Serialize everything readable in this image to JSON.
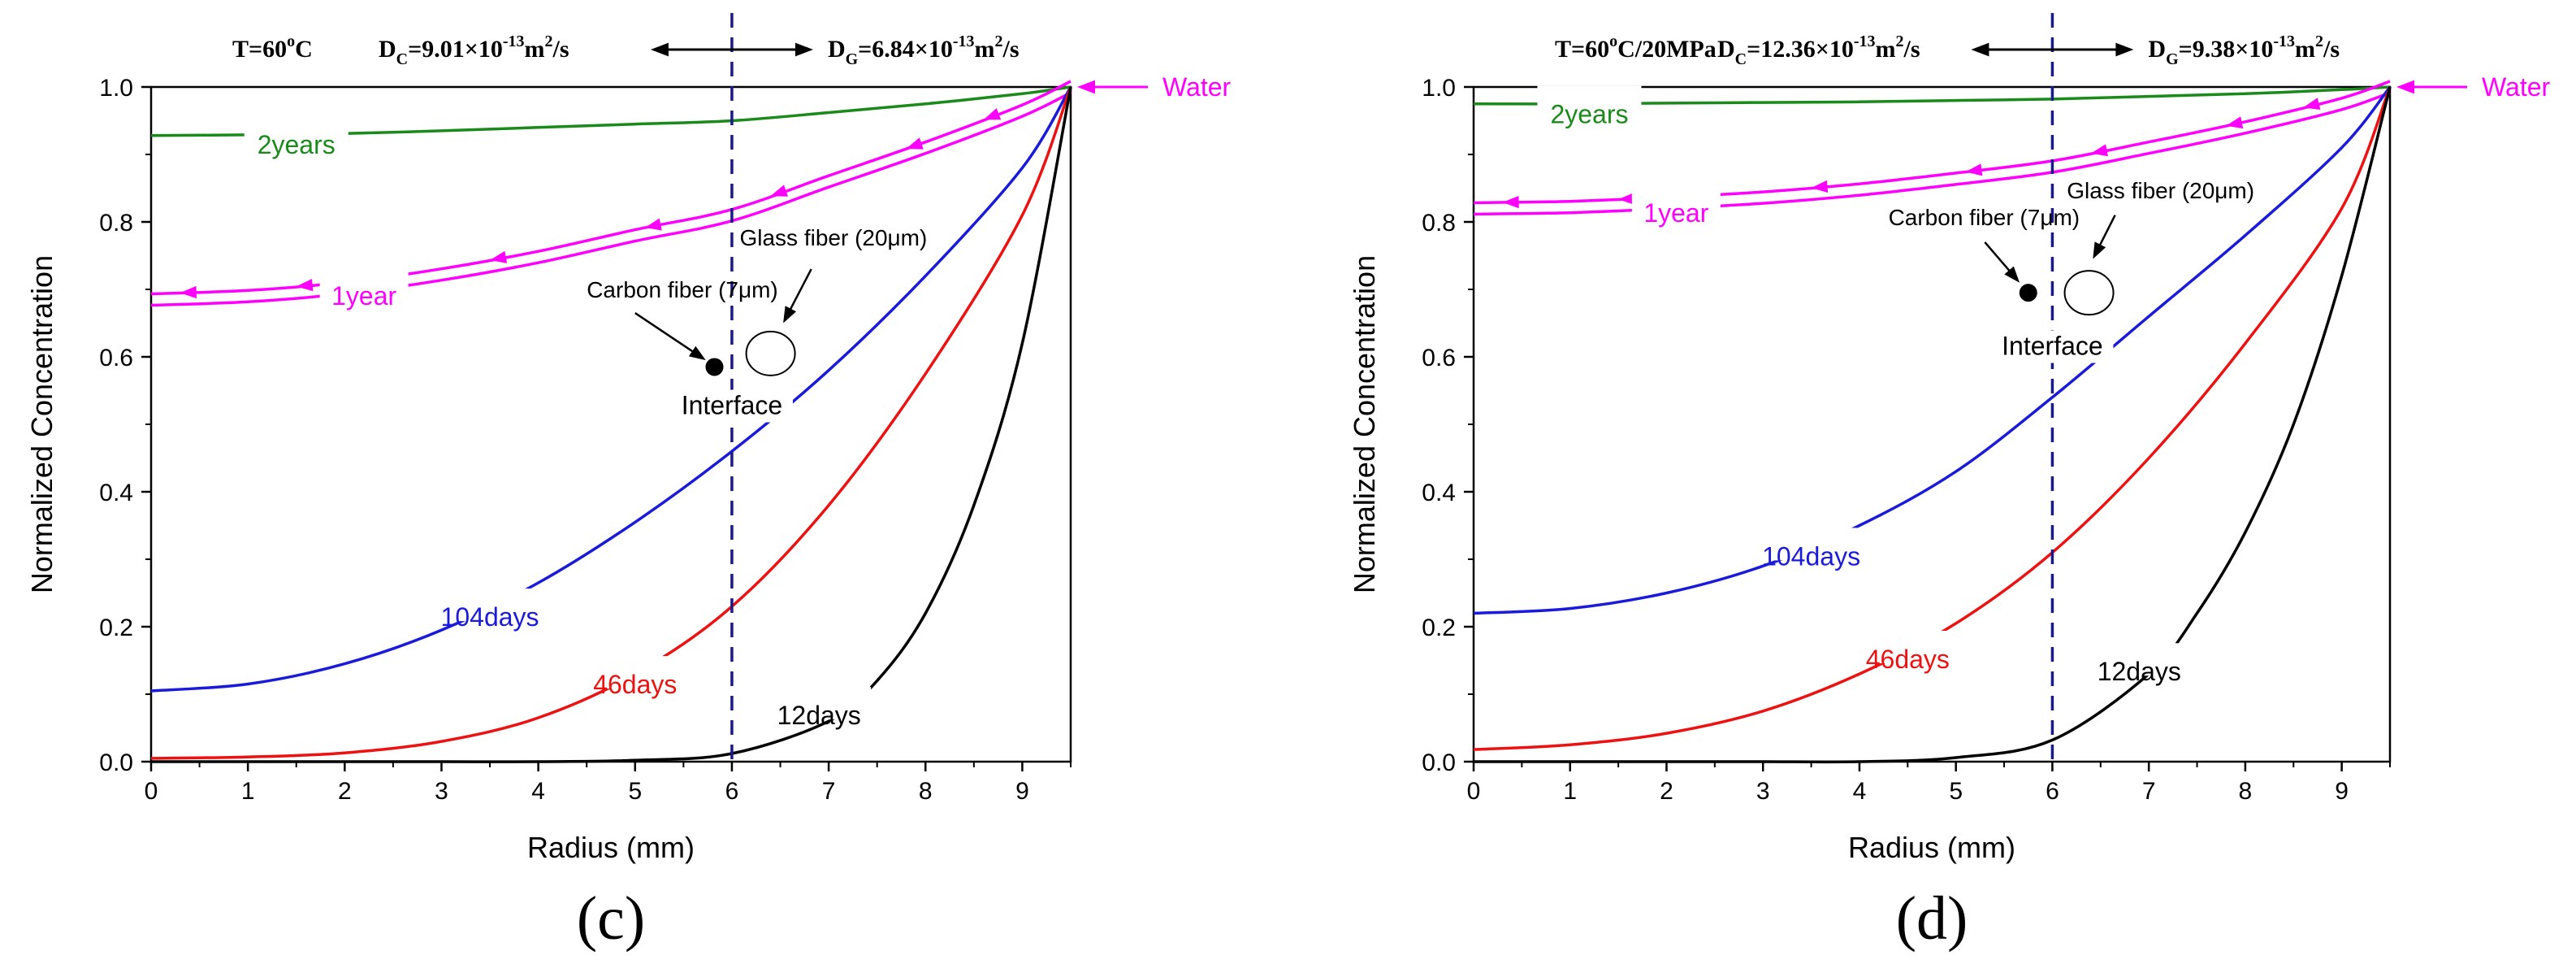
{
  "colors": {
    "twoyears": "#1a8a1a",
    "oneyear": "#ff00ff",
    "d104": "#1a1adc",
    "d46": "#ee1111",
    "d12": "#000000",
    "interface": "#1a1a8c",
    "water": "#ff00ff"
  },
  "chart_data": [
    {
      "type": "line",
      "panel_label": "(c)",
      "header": {
        "temp_main": "T=60",
        "temp_sup": "o",
        "temp_unit": "C",
        "dc_main": "D",
        "dc_sub": "C",
        "dc_val": "=9.01×10",
        "dc_exp": "-13",
        "dc_unit": "m",
        "dc_unit_sup": "2",
        "dc_unit_end": "/s",
        "dg_main": "D",
        "dg_sub": "G",
        "dg_val": "=6.84×10",
        "dg_exp": "-13",
        "dg_unit": "m",
        "dg_unit_sup": "2",
        "dg_unit_end": "/s"
      },
      "xlabel": "Radius (mm)",
      "ylabel": "Normalized Concentration",
      "xlim": [
        0,
        9.5
      ],
      "ylim": [
        0,
        1.0
      ],
      "xticks": [
        "0",
        "1",
        "2",
        "3",
        "4",
        "5",
        "6",
        "7",
        "8",
        "9"
      ],
      "yticks": [
        "0.0",
        "0.2",
        "0.4",
        "0.6",
        "0.8",
        "1.0"
      ],
      "interface_x": 6,
      "labels": {
        "water": "Water",
        "interface": "Interface",
        "carbon": "Carbon fiber (7μm)",
        "glass": "Glass fiber (20μm)"
      },
      "series": [
        {
          "name": "2years",
          "key": "twoyears",
          "x": [
            0,
            1,
            2,
            3,
            4,
            5,
            6,
            7,
            8,
            9,
            9.5
          ],
          "y": [
            0.928,
            0.929,
            0.931,
            0.935,
            0.94,
            0.945,
            0.95,
            0.962,
            0.975,
            0.99,
            1.0
          ],
          "label_x": 1.5
        },
        {
          "name": "1year",
          "key": "oneyear",
          "x": [
            0,
            1,
            2,
            3,
            4,
            5,
            6,
            7,
            8,
            9,
            9.5
          ],
          "y": [
            0.685,
            0.69,
            0.702,
            0.722,
            0.748,
            0.78,
            0.81,
            0.86,
            0.91,
            0.965,
            1.0
          ],
          "label_x": 2.2
        },
        {
          "name": "104days",
          "key": "d104",
          "x": [
            0,
            1,
            2,
            3,
            4,
            5,
            6,
            7,
            8,
            9,
            9.5
          ],
          "y": [
            0.105,
            0.115,
            0.145,
            0.195,
            0.265,
            0.355,
            0.46,
            0.58,
            0.72,
            0.88,
            1.0
          ],
          "label_x": 3.5
        },
        {
          "name": "46days",
          "key": "d46",
          "x": [
            0,
            1,
            2,
            3,
            4,
            5,
            6,
            7,
            8,
            9,
            9.5
          ],
          "y": [
            0.005,
            0.007,
            0.013,
            0.03,
            0.065,
            0.13,
            0.23,
            0.38,
            0.575,
            0.81,
            1.0
          ],
          "label_x": 5.0
        },
        {
          "name": "12days",
          "key": "d12",
          "x": [
            0,
            1,
            2,
            3,
            4,
            5,
            6,
            7,
            7.5,
            8,
            8.5,
            9,
            9.5
          ],
          "y": [
            0,
            0,
            0,
            0,
            0,
            0.002,
            0.012,
            0.06,
            0.12,
            0.22,
            0.38,
            0.62,
            1.0
          ],
          "label_x": 6.9
        }
      ]
    },
    {
      "type": "line",
      "panel_label": "(d)",
      "header": {
        "temp_main": "T=60",
        "temp_sup": "o",
        "temp_unit": "C/20MPa",
        "dc_main": "D",
        "dc_sub": "C",
        "dc_val": "=12.36×10",
        "dc_exp": "-13",
        "dc_unit": "m",
        "dc_unit_sup": "2",
        "dc_unit_end": "/s",
        "dg_main": "D",
        "dg_sub": "G",
        "dg_val": "=9.38×10",
        "dg_exp": "-13",
        "dg_unit": "m",
        "dg_unit_sup": "2",
        "dg_unit_end": "/s"
      },
      "xlabel": "Radius (mm)",
      "ylabel": "Normalized Concentration",
      "xlim": [
        0,
        9.5
      ],
      "ylim": [
        0,
        1.0
      ],
      "xticks": [
        "0",
        "1",
        "2",
        "3",
        "4",
        "5",
        "6",
        "7",
        "8",
        "9"
      ],
      "yticks": [
        "0.0",
        "0.2",
        "0.4",
        "0.6",
        "0.8",
        "1.0"
      ],
      "interface_x": 6,
      "labels": {
        "water": "Water",
        "interface": "Interface",
        "carbon": "Carbon fiber (7μm)",
        "glass": "Glass fiber (20μm)"
      },
      "series": [
        {
          "name": "2years",
          "key": "twoyears",
          "x": [
            0,
            1,
            2,
            3,
            4,
            5,
            6,
            7,
            8,
            9,
            9.5
          ],
          "y": [
            0.975,
            0.975,
            0.976,
            0.977,
            0.978,
            0.98,
            0.982,
            0.986,
            0.99,
            0.996,
            1.0
          ],
          "label_x": 1.2
        },
        {
          "name": "1year",
          "key": "oneyear",
          "x": [
            0,
            1,
            2,
            3,
            4,
            5,
            6,
            7,
            8,
            9,
            9.5
          ],
          "y": [
            0.82,
            0.822,
            0.828,
            0.836,
            0.848,
            0.864,
            0.882,
            0.91,
            0.94,
            0.975,
            1.0
          ],
          "label_x": 2.1
        },
        {
          "name": "104days",
          "key": "d104",
          "x": [
            0,
            1,
            2,
            3,
            4,
            5,
            6,
            7,
            8,
            9,
            9.5
          ],
          "y": [
            0.22,
            0.227,
            0.25,
            0.29,
            0.35,
            0.43,
            0.54,
            0.66,
            0.78,
            0.91,
            1.0
          ],
          "label_x": 3.5
        },
        {
          "name": "46days",
          "key": "d46",
          "x": [
            0,
            1,
            2,
            3,
            4,
            5,
            6,
            7,
            8,
            9,
            9.5
          ],
          "y": [
            0.018,
            0.025,
            0.042,
            0.075,
            0.13,
            0.205,
            0.31,
            0.45,
            0.62,
            0.82,
            1.0
          ],
          "label_x": 4.5
        },
        {
          "name": "12days",
          "key": "d12",
          "x": [
            0,
            1,
            2,
            3,
            4,
            5,
            6,
            7,
            7.5,
            8,
            8.5,
            9,
            9.5
          ],
          "y": [
            0,
            0,
            0,
            0,
            0,
            0.006,
            0.032,
            0.13,
            0.22,
            0.34,
            0.5,
            0.72,
            1.0
          ],
          "label_x": 6.9
        }
      ]
    }
  ]
}
